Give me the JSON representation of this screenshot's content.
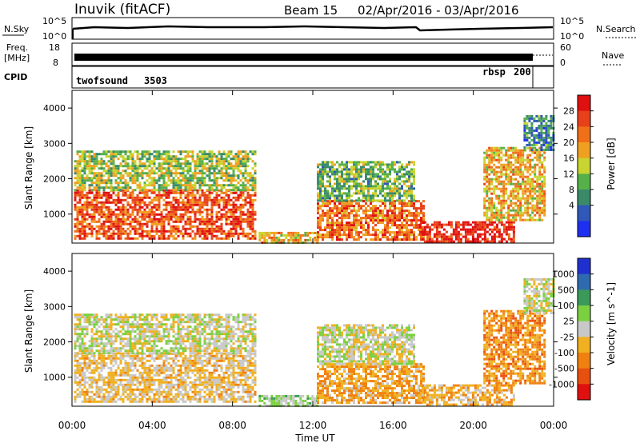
{
  "header": {
    "station": "Inuvik (fitACF)",
    "beam": "Beam 15",
    "date_range": "02/Apr/2016 - 03/Apr/2016"
  },
  "strips": {
    "nsky_label": "N.Sky",
    "nsky_ticks": [
      "10^5",
      "10^0"
    ],
    "nsearch_label": "N.Search",
    "nsearch_ticks": [
      "10^5",
      "10^0"
    ],
    "freq_label_1": "Freq.",
    "freq_label_2": "[MHz]",
    "freq_ticks": [
      "18",
      "8"
    ],
    "nave_label": "Nave",
    "nave_ticks": [
      "60",
      "0"
    ],
    "cpid_label": "CPID",
    "cpid_modes": [
      {
        "name": "twofsound",
        "id": "3503"
      },
      {
        "name": "rbsp",
        "id": "200"
      }
    ]
  },
  "chart_data": [
    {
      "type": "heatmap",
      "title": "",
      "xlabel": "Time UT",
      "ylabel": "Slant Range [km]",
      "x_ticks": [
        "00:00",
        "04:00",
        "08:00",
        "12:00",
        "16:00",
        "20:00",
        "00:00"
      ],
      "y_ticks": [
        "1000",
        "2000",
        "3000",
        "4000"
      ],
      "ylim": [
        180,
        4500
      ],
      "xlim_hours": [
        0,
        24
      ],
      "colorbar": {
        "label": "Power [dB]",
        "ticks": [
          "4",
          "8",
          "12",
          "16",
          "20",
          "24",
          "28"
        ],
        "range": [
          0,
          30
        ],
        "colors": [
          "#1e2ff0",
          "#2f58b8",
          "#3a8a6a",
          "#56b04a",
          "#c8d430",
          "#f0a020",
          "#f07018",
          "#e8401a",
          "#e01010"
        ]
      },
      "regions": [
        {
          "t": [
            0.1,
            9.1
          ],
          "r": [
            300,
            1700
          ],
          "v": 24
        },
        {
          "t": [
            0.1,
            9.1
          ],
          "r": [
            1700,
            2800
          ],
          "v": 14
        },
        {
          "t": [
            9.3,
            12.2
          ],
          "r": [
            180,
            500
          ],
          "v": 18
        },
        {
          "t": [
            12.2,
            17.5
          ],
          "r": [
            250,
            1400
          ],
          "v": 22
        },
        {
          "t": [
            12.2,
            17.0
          ],
          "r": [
            1400,
            2500
          ],
          "v": 12
        },
        {
          "t": [
            17.3,
            22.0
          ],
          "r": [
            200,
            800
          ],
          "v": 28
        },
        {
          "t": [
            20.5,
            23.6
          ],
          "r": [
            800,
            2900
          ],
          "v": 18
        },
        {
          "t": [
            22.5,
            24.0
          ],
          "r": [
            2800,
            3800
          ],
          "v": 8
        }
      ]
    },
    {
      "type": "heatmap",
      "title": "",
      "xlabel": "Time UT",
      "ylabel": "Slant Range [km]",
      "x_ticks": [
        "00:00",
        "04:00",
        "08:00",
        "12:00",
        "16:00",
        "20:00",
        "00:00"
      ],
      "y_ticks": [
        "1000",
        "2000",
        "3000",
        "4000"
      ],
      "ylim": [
        180,
        4500
      ],
      "xlim_hours": [
        0,
        24
      ],
      "colorbar": {
        "label": "Velocity [m s^-1]",
        "ticks": [
          "1000",
          "500",
          "100",
          "25",
          "-25",
          "-100",
          "-500",
          "-1000"
        ],
        "range": [
          -1000,
          1000
        ],
        "colors": [
          "#2030d0",
          "#2f6ab0",
          "#3b9a5a",
          "#7bd040",
          "#c8c8c8",
          "#f0b020",
          "#f08010",
          "#e85010",
          "#e01010"
        ]
      },
      "regions": [
        {
          "t": [
            0.1,
            9.1
          ],
          "r": [
            300,
            1700
          ],
          "v": -150
        },
        {
          "t": [
            0.1,
            9.1
          ],
          "r": [
            1700,
            2800
          ],
          "v": 0
        },
        {
          "t": [
            9.3,
            12.2
          ],
          "r": [
            180,
            500
          ],
          "v": 150
        },
        {
          "t": [
            12.2,
            17.5
          ],
          "r": [
            250,
            1400
          ],
          "v": -300
        },
        {
          "t": [
            12.2,
            17.0
          ],
          "r": [
            1400,
            2500
          ],
          "v": 0
        },
        {
          "t": [
            17.3,
            22.0
          ],
          "r": [
            200,
            800
          ],
          "v": -250
        },
        {
          "t": [
            20.5,
            23.6
          ],
          "r": [
            800,
            2900
          ],
          "v": -400
        },
        {
          "t": [
            22.5,
            24.0
          ],
          "r": [
            2800,
            3800
          ],
          "v": 0
        }
      ]
    }
  ]
}
